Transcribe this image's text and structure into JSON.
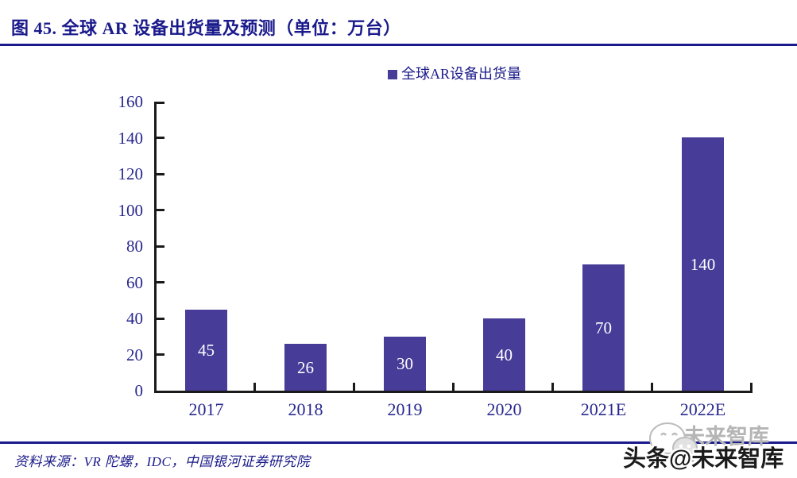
{
  "figure": {
    "title": "图 45. 全球 AR 设备出货量及预测（单位：万台）",
    "source": "资料来源：VR 陀螺，IDC，中国银河证券研究院"
  },
  "legend": {
    "label": "全球AR设备出货量"
  },
  "chart_data": {
    "type": "bar",
    "title": "全球AR设备出货量及预测",
    "unit": "万台",
    "categories": [
      "2017",
      "2018",
      "2019",
      "2020",
      "2021E",
      "2022E"
    ],
    "values": [
      45,
      26,
      30,
      40,
      70,
      140
    ],
    "series_name": "全球AR设备出货量",
    "xlabel": "",
    "ylabel": "",
    "ylim": [
      0,
      160
    ],
    "ytick_step": 20,
    "grid": false,
    "legend_position": "top-center",
    "bar_color": "#473d99",
    "bar_label_color": "#ffffff",
    "axis_color": "#1a1a1a",
    "tick_label_color": "#28288f"
  },
  "watermark": {
    "ghost_text": "未来智库",
    "main_text": "头条@未来智库",
    "logo": "chat-bubbles-icon"
  },
  "colors": {
    "accent_navy": "#1a1a8c",
    "bar_purple": "#473d99"
  }
}
